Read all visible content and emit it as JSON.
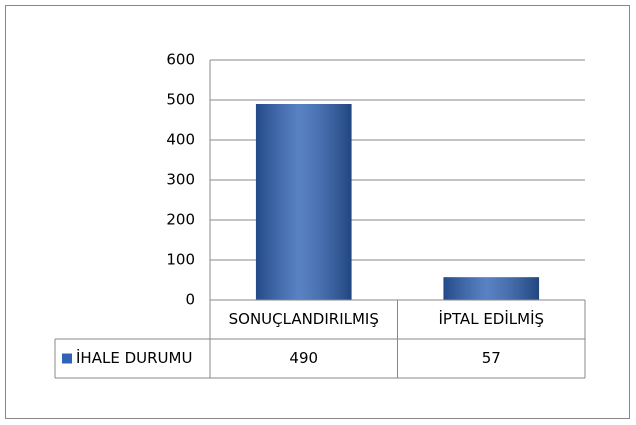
{
  "chart_data": {
    "type": "bar",
    "categories": [
      "SONUÇLANDIRILMIŞ",
      "İPTAL EDİLMİŞ"
    ],
    "series": [
      {
        "name": "İHALE DURUMU",
        "color": "#2f63b5",
        "values": [
          490,
          57
        ]
      }
    ],
    "ylim": [
      0,
      600
    ],
    "yticks": [
      0,
      100,
      200,
      300,
      400,
      500,
      600
    ],
    "grid": true
  }
}
